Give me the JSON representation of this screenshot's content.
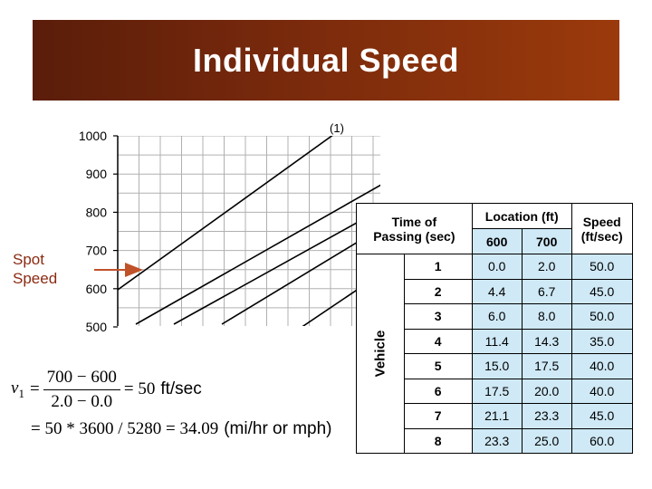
{
  "title": "Individual Speed",
  "chart_data": {
    "type": "line",
    "y_ticks": [
      "1000",
      "900",
      "800",
      "700",
      "600",
      "500"
    ],
    "annotation": "(1)",
    "ylim": [
      500,
      1000
    ]
  },
  "side_label": {
    "line1": "Spot",
    "line2": "Speed"
  },
  "formula": {
    "v_symbol": "v",
    "v_sub": "1",
    "numerator": "700 − 600",
    "denominator": "2.0 − 0.0",
    "eq_result": "= 50",
    "unit1": "ft/sec",
    "line2_math": "= 50 * 3600 / 5280 = 34.09",
    "unit2": "(mi/hr or mph)"
  },
  "table": {
    "h_time_line1": "Time of",
    "h_time_line2": "Passing (sec)",
    "h_location": "Location (ft)",
    "h_loc_600": "600",
    "h_loc_700": "700",
    "h_speed_line1": "Speed",
    "h_speed_line2": "(ft/sec)",
    "vehicle_label": "Vehicle",
    "rows": [
      {
        "id": "1",
        "t600": "0.0",
        "t700": "2.0",
        "speed": "50.0"
      },
      {
        "id": "2",
        "t600": "4.4",
        "t700": "6.7",
        "speed": "45.0"
      },
      {
        "id": "3",
        "t600": "6.0",
        "t700": "8.0",
        "speed": "50.0"
      },
      {
        "id": "4",
        "t600": "11.4",
        "t700": "14.3",
        "speed": "35.0"
      },
      {
        "id": "5",
        "t600": "15.0",
        "t700": "17.5",
        "speed": "40.0"
      },
      {
        "id": "6",
        "t600": "17.5",
        "t700": "20.0",
        "speed": "40.0"
      },
      {
        "id": "7",
        "t600": "21.1",
        "t700": "23.3",
        "speed": "45.0"
      },
      {
        "id": "8",
        "t600": "23.3",
        "t700": "25.0",
        "speed": "60.0"
      }
    ]
  },
  "colors": {
    "title_dark": "#5a1d0a",
    "title_light": "#9b3a0c",
    "arrow": "#c0522a",
    "side_label": "#8b2a12",
    "table_blue": "#cfe9f6"
  }
}
